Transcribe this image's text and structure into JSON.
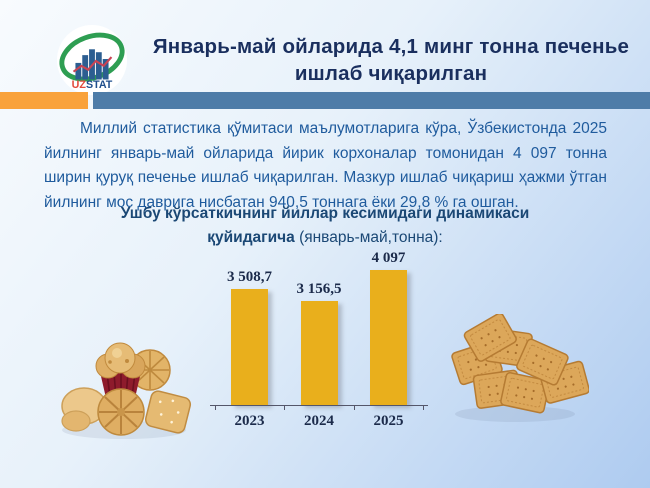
{
  "theme": {
    "bg_start": "#F8FBFE",
    "bg_mid": "#E7F1FA",
    "bg_end": "#AECBF0",
    "accent_orange": "#F9A23B",
    "divider_blue": "#4E7CA8",
    "title_navy": "#1A2F5E",
    "body_blue": "#1F5B9D",
    "subtitle_navy": "#1B4875",
    "bar_gold": "#E9AF1C",
    "chart_label": "#1B2A4A",
    "logo_green": "#2E9E52",
    "logo_bars_blue": "#2C5E91",
    "logo_line_red": "#C84454",
    "logo_uz_red": "#E2493B",
    "logo_stat_blue": "#1F4E8C"
  },
  "header": {
    "title_line1": "Январь-май ойларида 4,1 минг тонна печенье",
    "title_line2": "ишлаб чиқарилган"
  },
  "logo": {
    "uz": "UZ",
    "stat": "STAT"
  },
  "paragraph": {
    "text": "Миллий статистика қўмитаси маълумотларига кўра, Ўзбекистонда 2025 йилнинг январь-май ойларида йирик корхоналар томонидан 4 097 тонна ширин қуруқ печенье ишлаб чиқарилган. Мазкур ишлаб чиқариш ҳажми ўтган йилнинг мос даврига нисбатан 940,5 тоннага ёки 29,8 % га ошган."
  },
  "subtitle": {
    "line1": "Ушбу кўрсаткичнинг йиллар кесимидаги динамикаси",
    "line2_bold": "қуйидагича",
    "line2_rest": " (январь-май,тонна):"
  },
  "chart_data": {
    "type": "bar",
    "categories": [
      "2023",
      "2024",
      "2025"
    ],
    "values": [
      3508.7,
      3156.5,
      4097
    ],
    "labels": [
      "3 508,7",
      "3 156,5",
      "4 097"
    ],
    "title": "",
    "xlabel": "",
    "ylabel": "",
    "unit": "тонна",
    "ylim": [
      0,
      4097
    ],
    "grid": false,
    "legend": false,
    "value_label_position": "above",
    "bar_color": "#E9AF1C"
  }
}
